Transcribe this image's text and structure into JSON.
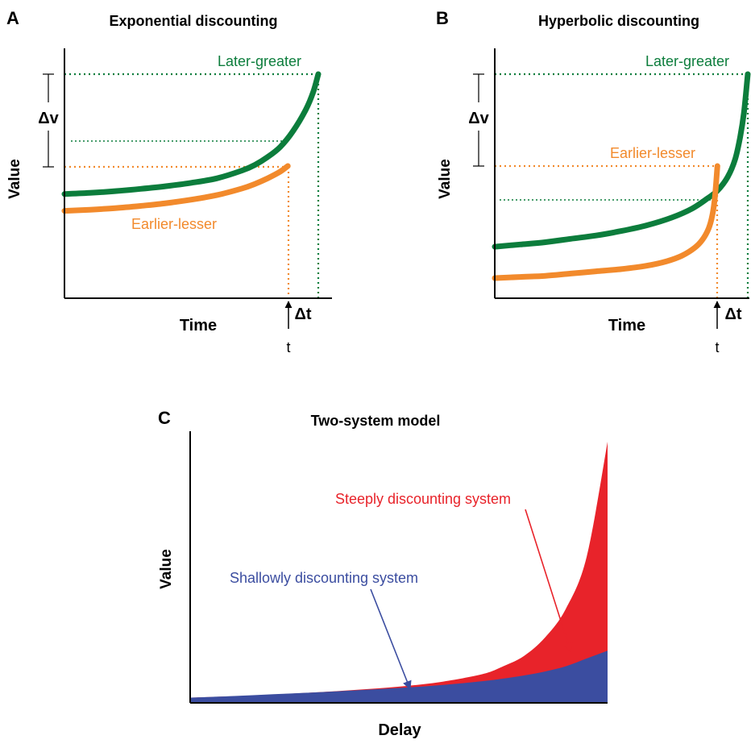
{
  "colors": {
    "later_greater": "#0c7d3c",
    "earlier_lesser": "#f28a2c",
    "steep_system": "#e8232a",
    "shallow_system": "#3b4da0",
    "axis": "#000000"
  },
  "chart_data": [
    {
      "type": "line",
      "panel_letter": "A",
      "title": "Exponential discounting",
      "xlabel": "Time",
      "ylabel": "Value",
      "xlim": [
        0,
        1
      ],
      "ylim": [
        0,
        1
      ],
      "series": [
        {
          "name": "Later-greater",
          "color": "#0c7d3c",
          "x": [
            0,
            0.1,
            0.2,
            0.3,
            0.4,
            0.5,
            0.6,
            0.7,
            0.75,
            0.8,
            0.85,
            0.9,
            0.95,
            0.98,
            1.0
          ],
          "y": [
            0.465,
            0.47,
            0.478,
            0.488,
            0.5,
            0.515,
            0.535,
            0.57,
            0.595,
            0.63,
            0.675,
            0.745,
            0.84,
            0.92,
            1.0
          ]
        },
        {
          "name": "Earlier-lesser",
          "color": "#f28a2c",
          "x": [
            0,
            0.1,
            0.2,
            0.3,
            0.4,
            0.5,
            0.6,
            0.7,
            0.75,
            0.8,
            0.85,
            0.88
          ],
          "y": [
            0.39,
            0.395,
            0.402,
            0.412,
            0.424,
            0.44,
            0.46,
            0.49,
            0.51,
            0.535,
            0.565,
            0.59
          ]
        }
      ],
      "annotations": {
        "delta_v": "Δv",
        "delta_t": "Δt",
        "t": "t"
      }
    },
    {
      "type": "line",
      "panel_letter": "B",
      "title": "Hyperbolic discounting",
      "xlabel": "Time",
      "ylabel": "Value",
      "xlim": [
        0,
        1
      ],
      "ylim": [
        0,
        1
      ],
      "series": [
        {
          "name": "Later-greater",
          "color": "#0c7d3c",
          "x": [
            0,
            0.1,
            0.2,
            0.3,
            0.4,
            0.5,
            0.6,
            0.7,
            0.78,
            0.84,
            0.88,
            0.92,
            0.95,
            0.97,
            0.985,
            1.0
          ],
          "y": [
            0.23,
            0.24,
            0.25,
            0.265,
            0.28,
            0.3,
            0.325,
            0.36,
            0.4,
            0.445,
            0.48,
            0.54,
            0.62,
            0.72,
            0.83,
            1.0
          ]
        },
        {
          "name": "Earlier-lesser",
          "color": "#f28a2c",
          "x": [
            0,
            0.1,
            0.2,
            0.3,
            0.4,
            0.5,
            0.6,
            0.68,
            0.74,
            0.79,
            0.82,
            0.845,
            0.86,
            0.87,
            0.88
          ],
          "y": [
            0.09,
            0.095,
            0.1,
            0.11,
            0.12,
            0.13,
            0.145,
            0.165,
            0.19,
            0.225,
            0.26,
            0.31,
            0.37,
            0.45,
            0.59
          ]
        }
      ],
      "annotations": {
        "delta_v": "Δv",
        "delta_t": "Δt",
        "t": "t"
      }
    },
    {
      "type": "area",
      "panel_letter": "C",
      "title": "Two-system model",
      "xlabel": "Delay",
      "ylabel": "Value",
      "xlim": [
        0,
        1
      ],
      "ylim": [
        0,
        1
      ],
      "series": [
        {
          "name": "Steeply discounting system",
          "color": "#e8232a",
          "x": [
            0,
            0.1,
            0.2,
            0.3,
            0.4,
            0.5,
            0.6,
            0.7,
            0.75,
            0.8,
            0.85,
            0.9,
            0.95,
            1.0
          ],
          "y": [
            0.02,
            0.025,
            0.032,
            0.04,
            0.05,
            0.062,
            0.08,
            0.11,
            0.14,
            0.18,
            0.25,
            0.36,
            0.56,
            1.0
          ]
        },
        {
          "name": "Shallowly discounting system",
          "color": "#3b4da0",
          "x": [
            0,
            0.1,
            0.2,
            0.3,
            0.4,
            0.5,
            0.6,
            0.7,
            0.75,
            0.8,
            0.85,
            0.9,
            0.95,
            1.0
          ],
          "y": [
            0.02,
            0.026,
            0.033,
            0.04,
            0.048,
            0.057,
            0.068,
            0.083,
            0.093,
            0.105,
            0.12,
            0.14,
            0.17,
            0.2
          ]
        }
      ]
    }
  ]
}
